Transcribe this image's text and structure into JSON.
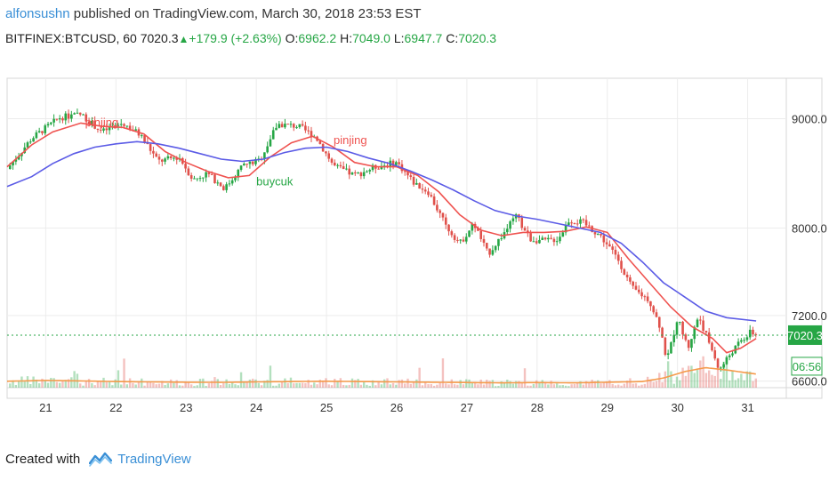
{
  "header": {
    "author": "alfonsushn",
    "published_text": "published on TradingView.com, March 30, 2018 23:53 EST",
    "symbol": "BITFINEX:BTCUSD, 60",
    "last": "7020.3",
    "change": "+179.9 (+2.63%)",
    "open_label": "O:",
    "open": "6962.2",
    "high_label": "H:",
    "high": "7049.0",
    "low_label": "L:",
    "low": "6947.7",
    "close_label": "C:",
    "close": "7020.3"
  },
  "footer": {
    "created_with": "Created with",
    "brand": "TradingView",
    "logo_icon": "tradingview-logo-icon"
  },
  "colors": {
    "up": "#26a645",
    "down": "#e0514b",
    "ma_fast": "#ef5350",
    "ma_slow": "#5b5be6",
    "vol_ma": "#f59a4a",
    "price_line": "#26a645"
  },
  "chart_data": {
    "type": "candlestick",
    "title": "BITFINEX:BTCUSD, 60",
    "x_ticks": [
      "21",
      "22",
      "23",
      "24",
      "25",
      "26",
      "27",
      "28",
      "29",
      "30",
      "31"
    ],
    "x_range": [
      20.45,
      31.55
    ],
    "y_ticks": [
      6600,
      7200,
      8000,
      9000
    ],
    "y_tick_labels": [
      "6600.0",
      "7200.0",
      "8000.0",
      "9000.0"
    ],
    "ylim": [
      6540,
      9370
    ],
    "last_price_label": "7020.3",
    "countdown_label": "06:56",
    "annotations": [
      {
        "text": "pinjing",
        "x": 21.56,
        "y": 8930,
        "color": "#ef5350"
      },
      {
        "text": "pinjing",
        "x": 25.1,
        "y": 8770,
        "color": "#ef5350"
      },
      {
        "text": "buycuk",
        "x": 24.0,
        "y": 8390,
        "color": "#26a645"
      }
    ],
    "close_path": [
      [
        20.45,
        8540
      ],
      [
        20.8,
        8820
      ],
      [
        21.2,
        9010
      ],
      [
        21.5,
        9040
      ],
      [
        21.8,
        8880
      ],
      [
        22.1,
        8960
      ],
      [
        22.35,
        8850
      ],
      [
        22.6,
        8610
      ],
      [
        22.9,
        8650
      ],
      [
        23.1,
        8440
      ],
      [
        23.3,
        8500
      ],
      [
        23.55,
        8360
      ],
      [
        23.8,
        8570
      ],
      [
        24.05,
        8620
      ],
      [
        24.3,
        8950
      ],
      [
        24.6,
        8930
      ],
      [
        24.85,
        8830
      ],
      [
        25.1,
        8570
      ],
      [
        25.4,
        8480
      ],
      [
        25.7,
        8560
      ],
      [
        26.0,
        8600
      ],
      [
        26.25,
        8410
      ],
      [
        26.45,
        8330
      ],
      [
        26.7,
        8020
      ],
      [
        26.9,
        7860
      ],
      [
        27.1,
        8040
      ],
      [
        27.3,
        7760
      ],
      [
        27.5,
        7930
      ],
      [
        27.7,
        8110
      ],
      [
        27.9,
        7900
      ],
      [
        28.1,
        7880
      ],
      [
        28.3,
        7900
      ],
      [
        28.45,
        8070
      ],
      [
        28.65,
        8050
      ],
      [
        28.9,
        7930
      ],
      [
        29.15,
        7720
      ],
      [
        29.35,
        7450
      ],
      [
        29.6,
        7340
      ],
      [
        29.75,
        7100
      ],
      [
        29.85,
        6780
      ],
      [
        30.0,
        7180
      ],
      [
        30.15,
        6900
      ],
      [
        30.3,
        7200
      ],
      [
        30.45,
        6950
      ],
      [
        30.6,
        6700
      ],
      [
        30.75,
        6850
      ],
      [
        30.9,
        6960
      ],
      [
        31.05,
        7050
      ],
      [
        31.12,
        7020
      ]
    ],
    "series": [
      {
        "name": "",
        "style": "line",
        "color": "#ef5350",
        "x": [
          20.45,
          20.8,
          21.1,
          21.5,
          21.8,
          22.1,
          22.4,
          22.7,
          23.0,
          23.3,
          23.6,
          23.9,
          24.2,
          24.5,
          24.8,
          25.1,
          25.4,
          25.7,
          26.0,
          26.3,
          26.6,
          26.9,
          27.2,
          27.5,
          27.8,
          28.1,
          28.4,
          28.7,
          29.0,
          29.3,
          29.6,
          29.9,
          30.2,
          30.5,
          30.7,
          30.9,
          31.12
        ],
        "y": [
          8560,
          8760,
          8880,
          8960,
          8930,
          8920,
          8860,
          8700,
          8600,
          8520,
          8460,
          8480,
          8650,
          8780,
          8840,
          8740,
          8600,
          8560,
          8560,
          8480,
          8330,
          8120,
          7980,
          7930,
          7960,
          7960,
          7970,
          8010,
          7960,
          7720,
          7500,
          7280,
          7100,
          6990,
          6860,
          6900,
          6990
        ]
      },
      {
        "name": "",
        "style": "line",
        "color": "#5b5be6",
        "x": [
          20.45,
          20.8,
          21.1,
          21.4,
          21.7,
          22.0,
          22.3,
          22.6,
          22.9,
          23.2,
          23.5,
          23.8,
          24.1,
          24.4,
          24.7,
          25.0,
          25.3,
          25.6,
          25.9,
          26.2,
          26.5,
          26.8,
          27.1,
          27.4,
          27.7,
          28.0,
          28.3,
          28.6,
          28.9,
          29.2,
          29.5,
          29.8,
          30.1,
          30.4,
          30.7,
          31.12
        ],
        "y": [
          8380,
          8470,
          8590,
          8680,
          8740,
          8770,
          8790,
          8770,
          8730,
          8680,
          8630,
          8610,
          8630,
          8690,
          8730,
          8740,
          8700,
          8640,
          8590,
          8520,
          8440,
          8350,
          8250,
          8160,
          8110,
          8080,
          8040,
          8000,
          7960,
          7860,
          7690,
          7500,
          7370,
          7240,
          7180,
          7150
        ]
      }
    ],
    "volume_ma": {
      "x": [
        20.45,
        21.0,
        21.5,
        22.0,
        22.5,
        23.0,
        23.5,
        24.0,
        24.5,
        25.0,
        25.5,
        26.0,
        26.5,
        27.0,
        27.5,
        28.0,
        28.5,
        29.0,
        29.5,
        29.8,
        30.1,
        30.4,
        30.7,
        31.12
      ],
      "y": [
        0.4,
        0.45,
        0.42,
        0.38,
        0.36,
        0.34,
        0.33,
        0.36,
        0.38,
        0.4,
        0.38,
        0.36,
        0.34,
        0.32,
        0.3,
        0.32,
        0.3,
        0.34,
        0.38,
        0.6,
        1.0,
        1.25,
        1.1,
        0.85
      ]
    }
  }
}
